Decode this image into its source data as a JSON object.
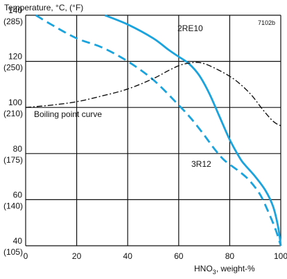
{
  "chart_data": {
    "type": "line",
    "code": "7102b",
    "ylabel": "Temperature, °C, (°F)",
    "xlabel": {
      "prefix": "HNO",
      "sub": "3",
      "suffix": ", weight-%"
    },
    "xlim": [
      0,
      100
    ],
    "ylim": [
      40,
      140
    ],
    "x_ticks": [
      "0",
      "20",
      "40",
      "60",
      "80",
      "100"
    ],
    "y_ticks": [
      {
        "value": 140,
        "c": "140",
        "f": "(285)"
      },
      {
        "value": 120,
        "c": "120",
        "f": "(250)"
      },
      {
        "value": 100,
        "c": "100",
        "f": "(210)"
      },
      {
        "value": 80,
        "c": "80",
        "f": "(175)"
      },
      {
        "value": 60,
        "c": "60",
        "f": "(140)"
      },
      {
        "value": 40,
        "c": "40",
        "f": "(105)"
      }
    ],
    "grid": true,
    "colors": {
      "steel": "#1aa3dd",
      "boiling": "#111111",
      "grid": "#111111"
    },
    "series": [
      {
        "name": "2RE10",
        "style": "solid",
        "points": [
          [
            31,
            140
          ],
          [
            40,
            136
          ],
          [
            50,
            130
          ],
          [
            56,
            125
          ],
          [
            60,
            122
          ],
          [
            64,
            119
          ],
          [
            68,
            114
          ],
          [
            72,
            106
          ],
          [
            76,
            96
          ],
          [
            80,
            86
          ],
          [
            84,
            78
          ],
          [
            86,
            75
          ],
          [
            90,
            70
          ],
          [
            94,
            64
          ],
          [
            97,
            57
          ],
          [
            99,
            48
          ],
          [
            100,
            40
          ]
        ]
      },
      {
        "name": "3R12",
        "style": "dashed",
        "points": [
          [
            4,
            140
          ],
          [
            10,
            136
          ],
          [
            20,
            130
          ],
          [
            30,
            126
          ],
          [
            40,
            120
          ],
          [
            50,
            112
          ],
          [
            60,
            101
          ],
          [
            65,
            95
          ],
          [
            70,
            88
          ],
          [
            74,
            82
          ],
          [
            78,
            77
          ],
          [
            84,
            72
          ],
          [
            88,
            68
          ],
          [
            92,
            62
          ],
          [
            95,
            55
          ],
          [
            98,
            47
          ],
          [
            100,
            40
          ]
        ]
      },
      {
        "name": "Boiling point curve",
        "style": "dashdot",
        "points": [
          [
            0,
            100
          ],
          [
            10,
            101
          ],
          [
            20,
            102.5
          ],
          [
            30,
            105
          ],
          [
            40,
            108
          ],
          [
            50,
            112.5
          ],
          [
            56,
            116
          ],
          [
            61,
            118.5
          ],
          [
            66,
            119.5
          ],
          [
            70,
            119
          ],
          [
            76,
            116
          ],
          [
            82,
            112
          ],
          [
            88,
            106
          ],
          [
            93,
            99
          ],
          [
            97,
            94
          ],
          [
            100,
            92
          ]
        ]
      }
    ]
  }
}
